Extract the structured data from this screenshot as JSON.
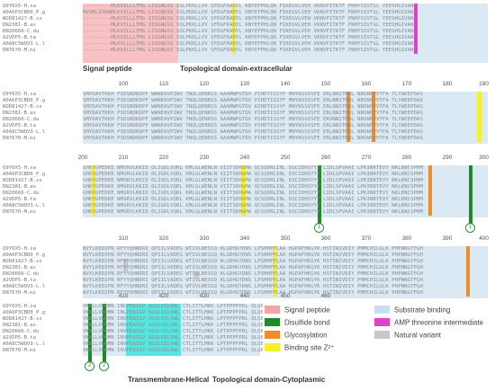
{
  "species": [
    "Q9Y6X5-H.sa",
    "A0A6P3CBD0_P.g",
    "NOD81427-B.ss",
    "DN2381-B.as",
    "DN20666-C.du",
    "A2VDP5-B.ta",
    "A0A8C5WQV3-L.l",
    "DN7670-M.mi"
  ],
  "blocks": [
    {
      "ticks": [],
      "rows": [
        "---------MLKVILLLTMG LISGNGSS SSLPKKLLVV SFDGFRADYL KNYEFPHLQN FIKEGVLVEH VKNVFITKTF PNHYSIVTGL YEESHGIVAN",
        "MVVKLISKNMLKVILLLTMG LISGNGSS SSLPKKLLVV SFDGFRADYL KNYEFPHLQN FIKEGVLVEH VKNVFITKTF PNHYSIVTGL YEESHGIVAN",
        "---------MLKVILLLTMG IISGNGSS SSLPKKLLVV SFDGFRADYL KNYEFPHLQN FIKEGVLVEH VKNVFITKTF PNHYSIVTGL YEESHGIVAN",
        "---------MLKVILLLTMG IISGNGSS SSLPKKLLVV SFDGFRADYL KNYEFPHLQN FIKEGVLVEH VKNVFITKTF PNHYSIVTGL YEESHGIVAN",
        "---------MLKVILLLTMG LISGNGSS SSLPKKLLVV SFDGFRADYL KNYEFPHLQN FIKEGVLVEH VKNVFITKTF PNHYSIVTGL YEESHGIVAN",
        "---------MLKVILLLTMG LISGNGSS SSLPKKLLVV SFDGFRADYL KNYEFPHLQN FIKEGVLVEH VKNVFITKTF PNHYSIVTGL YEESHGIVAN",
        "---------MLKVLLLLTMG LISGNGSS SSLPKKLLVV SFDGFRADYL KNYEFPHLQN FIKEGVLVEH VKNVFITKTF PNHYSIVTGL YEESHGIVAN",
        "---------MLKVILLLTMG LISGNGSS SSLPKKLLVV SFDGFRADYL KNYEFPHLQN FIKEGVLVEH VKNVFITKTF PNHYSIVTGL YEESHGIVAN"
      ]
    },
    {
      "ticks": [
        "100",
        "110",
        "120",
        "130",
        "140",
        "150",
        "160",
        "170",
        "180",
        "190"
      ],
      "rows": [
        "SMYDAVTKKH FSDSNDKDPF WWNEAVPIWV TNQLQENRSS AAAMWPGTDV PIHDTISSYF MNYNSSVSFE ERLNNITMWL NNSNPPVTFA TLYWEEPDAS",
        "SMYDAVTKKH FSDSNDKDPF WWNEAVPIWV TNQLQENRSS AAAMWPGTDV PIHDTISSYF MNYNSSVSFE ERLNNITMWL NNSNPPVTFA TLYWEEPDAS",
        "SMYDAVTKKH FSDSNDKDPF WWNEAVPIWV TNQLQENRSS AAAMWPGTDV KIHDTISSYF MNYNSSVSFE ERLNNITMWL NNSNPPVTFA TLYWEEPDAS",
        "SMYDAVTKKH FSDSNDKDPF WWNEAVPIWV TNQLQENRSS AAAMWPGTDV PIHDTISSYF MNYNSSVSFE ERLNNITMWL NNSNPPVTFA TLYWEEPDAS",
        "SMYDAVTKKH FSDSNDKDPF WWNEAVPIWV TNQLQENRSS AAAMWPGTDV PIHDTISSYF MNYNSSVSFE ERVNNITMWL NNSNPPVTFA TLYWEEPDAS",
        "SMYDAVTKKH FSDSNDKDPF WWNEAVPIWV TNQLQENRSS AAAMWPGTDV PIHDTISSYF MNYNSSVSFE ERLNNITMWL NNSNPPVTFA TLYWEEPDAS",
        "SMYDAVTKKH FSDSNDKDPF WWNEAVPIWV TNQLQENRSS AAAMWPGTDV PIHDTISSYF MNYNSSVSFE ERLNNITMWL NNSNPPVTFA TLYWEEPDAS",
        "SMYDAVTKKH FSDSNDKDPF WWNEAVPIWV TNQLQENRSS AAAMWPGTDV PIHDTISSYF MNYNSSVSFE ERLNNITMWL NNSNPPVTFA TLYWEEPDAS"
      ]
    },
    {
      "ticks": [
        "200",
        "210",
        "220",
        "230",
        "240",
        "250",
        "260",
        "270",
        "280",
        "290",
        "300"
      ],
      "rows": [
        "GHKYGPEDKE NMSRVLKKID DLIGDLVQRL KMLGLWENLN VIITSDHGMA QCSQDRLINL DSCIDHSYYT LIDLSPVAAI LPKINRTEVY NKLKNCSPHM",
        "GHKYGPEDKE NMSRVLKKID DLIGDLVQRL KMLGLWENLN VIITSDHGMA QCSQDRLINL DSCIDHSYYT LIDLSPVAAI LPKINRTEVY NKLKNCSPHM",
        "GHKYGPEDKE NMSRVLKKID DLIGDLVQRL KMLGLWENLN VIITSDHGMA QCSQDRLINL DSCIDHSYYT LIDLSPVAAI LPKINRTEVY NKLKNCSPHM",
        "GHKYGPEDKE NMSRVLKKID DLIGDLVQRL KMLGLWENLN VIITSDHGMA QCSQDRLINL DSCIDHSYYT LIDLSPVAAI LPKINRTEVY NKLKNCSPHM",
        "GHKYGPEDKE NMSRVLKKID DLIGDLVQRL KMLGLWENLN VIITSDHGMA QCSQDRLINL DSCIDHSYYT LIDLSPVAAI LPKINRTEVY NKLKNCSPHM",
        "GHKYGPEDKE NMSRVLKKID DLIGDLVQRL KMLGLWENLN VIITSDHGMA QCSQDRLINL DSCIDHSYYT LIDLSPVAAI LPKINRTEVY NKLKNCSPHM",
        "GHKYGPEDKE NMSRVLKKID DLIGDLVQRL KMLGLWENLN VIITSDHGMA QCSQDRLINL DSCIDHSYYT LIDLSPVAAI LPKINRTEVY NKLKNCSPHM",
        "GHKYGPEDKE NMSRVLKKID DLIGDLVQRL KMLGLWENLN VIITSDHGMA QCSQDRLINL DSCIDHSYYT LIDLSPVAAI LPKINRTEVY NKLKNCSPHM"
      ]
    },
    {
      "ticks": [
        "310",
        "320",
        "330",
        "340",
        "350",
        "360",
        "370",
        "380",
        "390",
        "400"
      ],
      "rows": [
        "NVYLKEDIPN RFYYQHNDRI QPIILVADEG WTIVLNESSQ KLGDHGYDNS LPSMHPFLAA HGPAFHKGYK HSTINIVDIY PMMCHILGLK PHPNNGTFGH",
        "NVYLKEDIPN RFYYQHNDRI QPIILVADEG WTIVLNESSQ KLGDHGYDNS LPSMHPFLAA HGPAFHKGYK HSTINIVDIY PMMCHILGLK PHPNNGTFGH",
        "NVYLKEDIPN RFYYQHNDRI QPIILVADEG WTIVLNESSQ KLGDHGYDNS LPSMHPFLAA HGPAFHKGYK HSTINIVDIY PMMCHILGLK PHPNNGTFGH",
        "NVYLKEDIPN RFYYQHNDRI QPIILVADEG WTIVLNESSQ KLGDHGYDNS LPSMHPFLAA HGPAFHKGYK HSTINIVDIY PMMCHILGLK PHPNNGTFGH",
        "NVYLKEDIPN RFYYQHNDRI QPIILVADEG WTIVLNESSQ KLGDHGYDNS LPSMHPFLAA HGPAFHKGYK HSTINIVDIY PMMCHILGLK PHPNNGTFGH",
        "NVYLKEDIPN RFYYQHNDRI QPIILVADEG WTIVLNESSQ KLGDHGYDNS LPSMHPFLAA HGPAFHKGYK HSTINIVDIY PMMCHILGLK PHPNNGTFGH",
        "NVYLKEDIPN RFYYQHNDRI QPIILVADEG WTIVLNESSQ KLGDHGYDNS LPSMHPFLAA HGPAFHKGYK HSTINIVDIY PMMCHILGLK PHPNNGTFGH",
        "NVYLKEDIPN RFYYQHNDRI QPIILVADEG WTIVLNESSQ KLGDHGYDNS LPSMHPFLAA HGPAFHKGYK HSTINIVDIY PMMCHILGLK PHPNNGTFGH"
      ]
    },
    {
      "ticks": [
        "410",
        "420",
        "430",
        "440",
        "450",
        "460"
      ],
      "rows": [
        "VKNLLVDQMN INLPEAIGV  SGSLVILVWL CTLITTLMKK LPTPPPFPRL QLQECQDDPL IG",
        "VKNLLVDQMN INLPEAIGV  SGSLVILVWL CTLITTLMKK LPTPPPFPRL QLQECQDDPL IG",
        "VKNLLVDQMN INVPEAIGV  SGSLVILVWL CTLITTLMKK LPTPPPFPRL QLQECQDDPL IG",
        "VKNLLVDQMN INVPEAIGV  SGSLVILVWL CTLITTLMKK LPTPPPFPRL QLQECQDDPL IG",
        "VKNLLVDQMN INVPEAIGV  SGSLVILVWL CTLITTLMKK LPTPPPFPRL QLQECQDDPL IG",
        "VKNLLVDQMN INVPEAIGV  SGSLVILVWL CTLITTLMKK LPTPPPFPRL QLQECQDDPL IG",
        "VKNLLVDQMN INVPEAIGV  SGSLVILVWL CTLITTLMKK LPTPPPFPRL QLQECQDDPL IG",
        "VKNLLVDQMN INVPEAIGV  SGSLVILVWL CTLITTLMKK LPTPPPFPRL QLQECQDDPL IG"
      ]
    }
  ],
  "annotations": {
    "signal_peptide": "Signal peptide",
    "topo_extra": "Topological domain-extracellular",
    "transmembrane": "Transmembrane-Helical",
    "topo_cyto": "Topological domain-Cytoplasmic"
  },
  "circles": [
    "1",
    "1",
    "1",
    "2",
    "2"
  ],
  "legend": [
    {
      "label": "Signal peptide",
      "color": "#f4a3a8"
    },
    {
      "label": "Substrate binding",
      "color": "#c9dff0"
    },
    {
      "label": "Disulfide bond",
      "color": "#1f8a2a"
    },
    {
      "label": "AMP threonine intermediate",
      "color": "#e040c8"
    },
    {
      "label": "Glycosylation",
      "color": "#f08c2a"
    },
    {
      "label": "Natural variant",
      "color": "#c8c8c8"
    },
    {
      "label": "Binding site Z²⁺",
      "color": "#f4f030"
    }
  ]
}
